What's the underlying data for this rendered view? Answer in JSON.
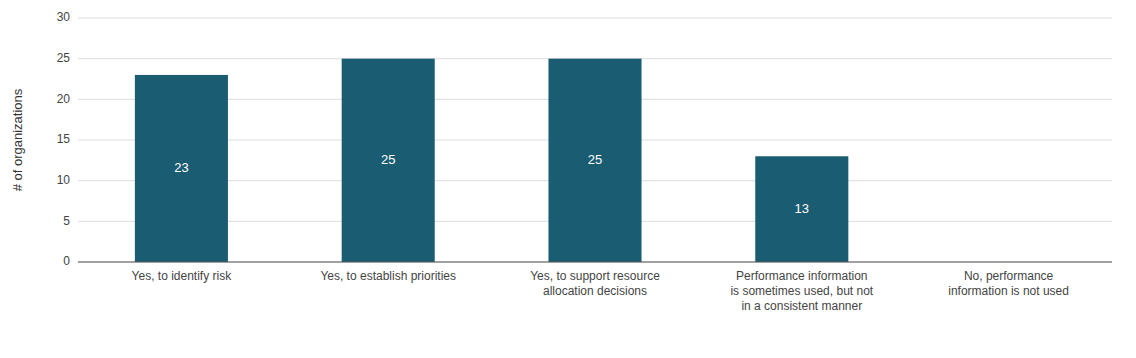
{
  "chart_data": {
    "type": "bar",
    "categories": [
      "Yes, to identify risk",
      "Yes, to establish priorities",
      "Yes, to support resource\nallocation decisions",
      "Performance information\nis sometimes used, but not\nin a consistent manner",
      "No, performance\ninformation is not used"
    ],
    "values": [
      23,
      25,
      25,
      13,
      0
    ],
    "color": "#1a5c72",
    "ylabel": "# of organizations",
    "ylim": [
      0,
      30
    ],
    "yticks": [
      0,
      5,
      10,
      15,
      20,
      25,
      30
    ],
    "grid": true,
    "data_labels": true
  }
}
